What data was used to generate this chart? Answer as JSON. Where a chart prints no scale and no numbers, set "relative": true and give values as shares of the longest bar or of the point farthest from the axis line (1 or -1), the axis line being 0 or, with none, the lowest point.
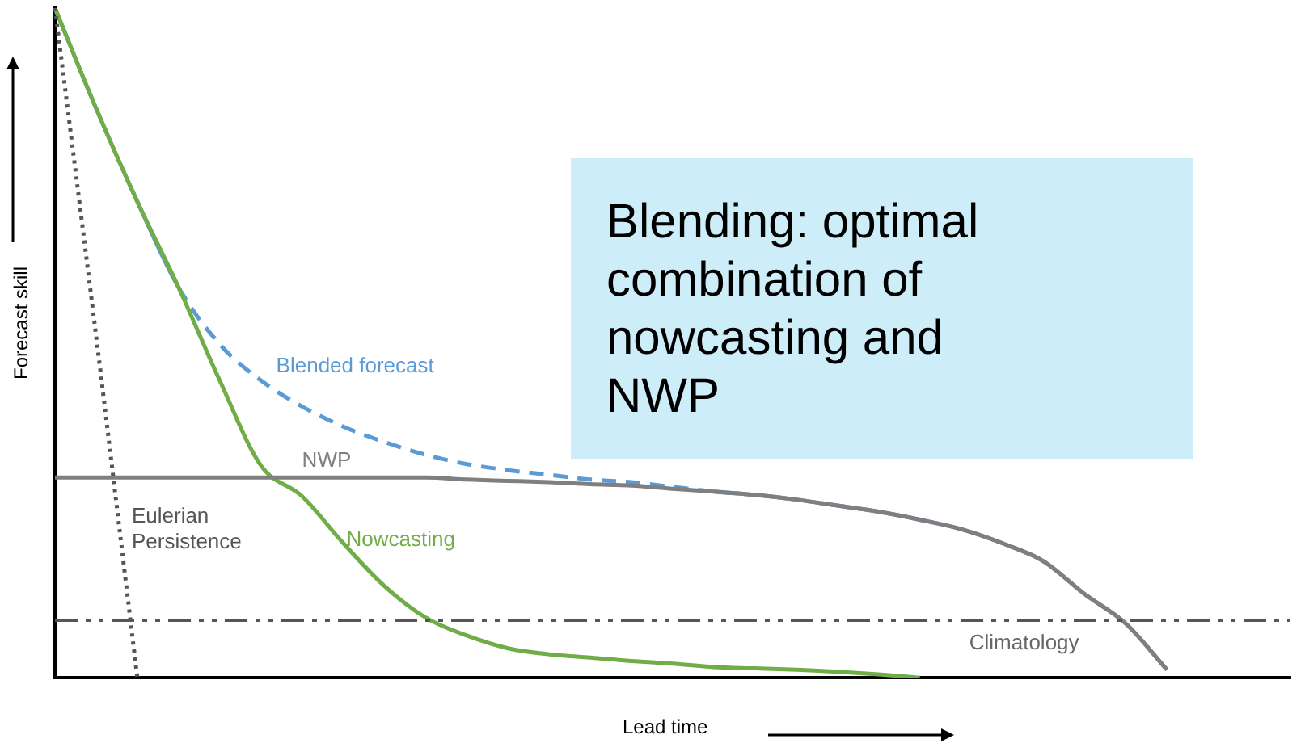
{
  "chart_data": {
    "type": "line",
    "relative": true,
    "xlabel": "Lead time",
    "ylabel": "Forecast skill",
    "categories": [
      null,
      null,
      null,
      null,
      null,
      null,
      null,
      null,
      null,
      null,
      null,
      null,
      null,
      null,
      null,
      null,
      null,
      null,
      null,
      null,
      null,
      null,
      null,
      null,
      null,
      null,
      null,
      null,
      null,
      null,
      null
    ],
    "series": [
      {
        "name": "Eulerian Persistence",
        "color": "#555555",
        "line_style": "dotted",
        "values": [
          1.0,
          0.51,
          0,
          null,
          null,
          null,
          null,
          null,
          null,
          null,
          null,
          null,
          null,
          null,
          null,
          null,
          null,
          null,
          null,
          null,
          null,
          null,
          null,
          null,
          null,
          null,
          null,
          null,
          null,
          null,
          null
        ]
      },
      {
        "name": "NWP",
        "color": "#7f7f7f",
        "line_style": "solid",
        "values": [
          0.299,
          0.299,
          0.299,
          0.299,
          0.299,
          0.299,
          0.299,
          0.299,
          0.299,
          0.299,
          0.296,
          0.294,
          0.292,
          0.289,
          0.287,
          0.282,
          0.278,
          0.273,
          0.266,
          0.257,
          0.248,
          0.236,
          0.222,
          0.201,
          0.174,
          0.125,
          0.081,
          0.012,
          null,
          null,
          null
        ]
      },
      {
        "name": "Nowcasting",
        "color": "#70ad47",
        "line_style": "solid",
        "values": [
          1.0,
          0.85,
          0.711,
          0.583,
          0.444,
          0.317,
          0.271,
          0.201,
          0.137,
          0.09,
          0.063,
          0.044,
          0.035,
          0.03,
          0.025,
          0.021,
          0.016,
          0.014,
          0.012,
          0.009,
          0.005,
          0,
          null,
          null,
          null,
          null,
          null,
          null,
          null,
          null,
          null
        ]
      },
      {
        "name": "Blended forecast",
        "color": "#5b9bd5",
        "line_style": "dashed",
        "values": [
          1.0,
          0.85,
          0.711,
          0.583,
          0.498,
          0.444,
          0.405,
          0.375,
          0.352,
          0.333,
          0.319,
          0.31,
          0.303,
          0.296,
          0.292,
          0.285,
          0.278,
          0.273,
          0.266,
          0.257,
          0.248,
          0.236,
          0.222,
          0.201,
          0.174,
          0.125,
          0.081,
          0.012,
          null,
          null,
          null
        ]
      }
    ],
    "ref_lines": [
      {
        "axis": "y",
        "value": 0.086,
        "label": "Climatology",
        "color": "#555555",
        "line_style": "dashed"
      }
    ],
    "annotations": [
      "Blending: optimal combination of nowcasting and NWP"
    ],
    "legend": false,
    "grid": false,
    "marker": "none"
  }
}
